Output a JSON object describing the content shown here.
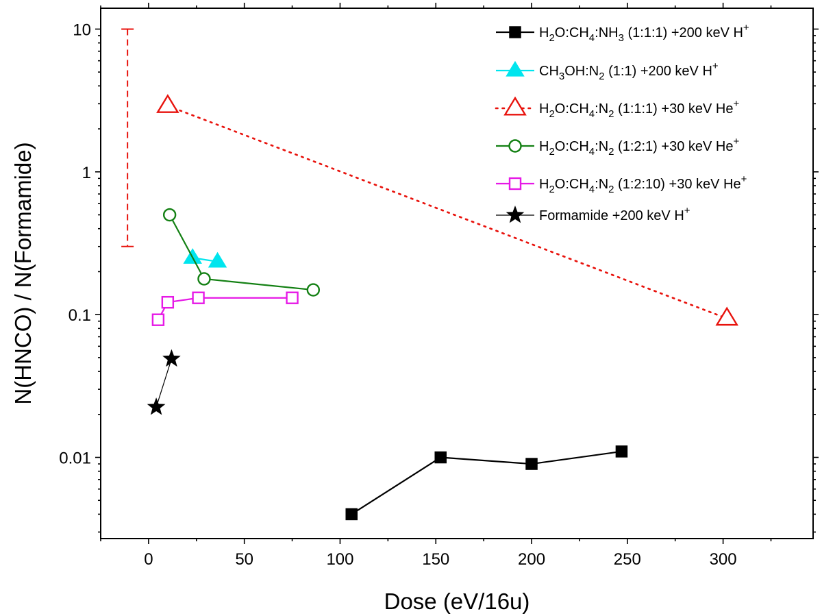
{
  "chart_data": {
    "type": "scatter",
    "title": "",
    "xlabel": "Dose (eV/16u)",
    "ylabel": "N(HNCO) / N(Formamide)",
    "xlim": [
      -25,
      347
    ],
    "ylim": [
      0.0027,
      14
    ],
    "yscale": "log",
    "x_ticks": [
      0,
      50,
      100,
      150,
      200,
      250,
      300
    ],
    "x_tick_labels": [
      "0",
      "50",
      "100",
      "150",
      "200",
      "250",
      "300"
    ],
    "y_ticks": [
      0.01,
      0.1,
      1,
      10
    ],
    "y_tick_labels": [
      "0.01",
      "0.1",
      "1",
      "10"
    ],
    "series": [
      {
        "name": "H2O:CH4:NH3 (1:1:1) +200 keV H+",
        "legend_parts": [
          {
            "t": "H"
          },
          {
            "t": "2",
            "s": "sub"
          },
          {
            "t": "O:CH"
          },
          {
            "t": "4",
            "s": "sub"
          },
          {
            "t": ":NH"
          },
          {
            "t": "3",
            "s": "sub"
          },
          {
            "t": " (1:1:1) +200 keV H"
          },
          {
            "t": "+",
            "s": "sup"
          }
        ],
        "color": "#000000",
        "marker": "square",
        "filled": true,
        "line": "solid",
        "x": [
          106,
          152.5,
          200,
          247
        ],
        "y": [
          0.004,
          0.01,
          0.009,
          0.011
        ]
      },
      {
        "name": "CH3OH:N2 (1:1) +200 keV H+",
        "legend_parts": [
          {
            "t": "CH"
          },
          {
            "t": "3",
            "s": "sub"
          },
          {
            "t": "OH:N"
          },
          {
            "t": "2",
            "s": "sub"
          },
          {
            "t": " (1:1) +200 keV H"
          },
          {
            "t": "+",
            "s": "sup"
          }
        ],
        "color": "#00e5ee",
        "marker": "triangle",
        "filled": true,
        "line": "solid",
        "x": [
          23,
          36
        ],
        "y": [
          0.25,
          0.235
        ]
      },
      {
        "name": "H2O:CH4:N2 (1:1:1) +30 keV He+",
        "legend_parts": [
          {
            "t": "H"
          },
          {
            "t": "2",
            "s": "sub"
          },
          {
            "t": "O:CH"
          },
          {
            "t": "4",
            "s": "sub"
          },
          {
            "t": ":N"
          },
          {
            "t": "2",
            "s": "sub"
          },
          {
            "t": " (1:1:1) +30 keV He"
          },
          {
            "t": "+",
            "s": "sup"
          }
        ],
        "color": "#e8120c",
        "marker": "triangle",
        "filled": false,
        "line": "dotted",
        "x": [
          10,
          302
        ],
        "y": [
          2.9,
          0.094
        ]
      },
      {
        "name": "H2O:CH4:N2 (1:2:1) +30 keV He+",
        "legend_parts": [
          {
            "t": "H"
          },
          {
            "t": "2",
            "s": "sub"
          },
          {
            "t": "O:CH"
          },
          {
            "t": "4",
            "s": "sub"
          },
          {
            "t": ":N"
          },
          {
            "t": "2",
            "s": "sub"
          },
          {
            "t": " (1:2:1) +30 keV He"
          },
          {
            "t": "+",
            "s": "sup"
          }
        ],
        "color": "#138013",
        "marker": "circle",
        "filled": false,
        "line": "solid",
        "x": [
          11,
          29,
          86
        ],
        "y": [
          0.5,
          0.178,
          0.149
        ]
      },
      {
        "name": "H2O:CH4:N2 (1:2:10) +30 keV He+",
        "legend_parts": [
          {
            "t": "H"
          },
          {
            "t": "2",
            "s": "sub"
          },
          {
            "t": "O:CH"
          },
          {
            "t": "4",
            "s": "sub"
          },
          {
            "t": ":N"
          },
          {
            "t": "2",
            "s": "sub"
          },
          {
            "t": " (1:2:10) +30 keV He"
          },
          {
            "t": "+",
            "s": "sup"
          }
        ],
        "color": "#e619e6",
        "marker": "square",
        "filled": false,
        "line": "solid",
        "x": [
          5,
          10,
          26,
          75
        ],
        "y": [
          0.092,
          0.122,
          0.131,
          0.131
        ]
      },
      {
        "name": "Formamide +200 keV H+",
        "legend_parts": [
          {
            "t": "Formamide +200 keV H"
          },
          {
            "t": "+",
            "s": "sup"
          }
        ],
        "color": "#000000",
        "marker": "star",
        "filled": true,
        "line": "thin",
        "x": [
          4,
          12
        ],
        "y": [
          0.0225,
          0.049
        ]
      }
    ],
    "error_bar": {
      "x": -11,
      "y_low": 0.3,
      "y_high": 10,
      "color": "#e8120c",
      "style": "dashed"
    },
    "legend": {
      "placement": "top-right"
    }
  }
}
